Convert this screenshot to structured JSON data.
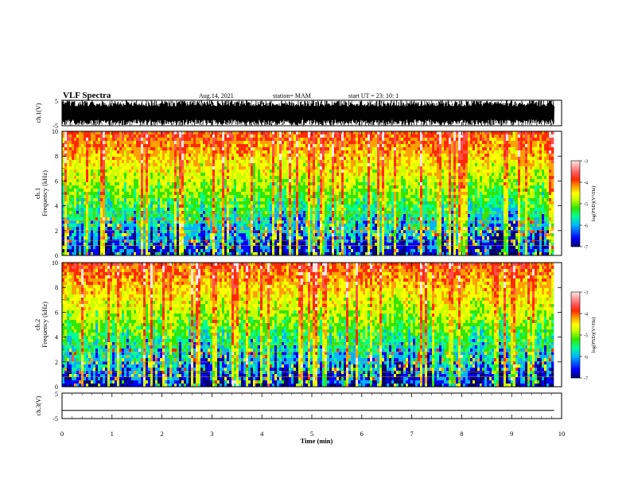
{
  "header": {
    "title": "VLF Spectra",
    "date": "Aug.14, 2021",
    "station": "station= MAM",
    "start_ut": "start  UT  =   23: 10: 1"
  },
  "colors": {
    "spectrum_palette": [
      "#00006e",
      "#0000ff",
      "#00b4ff",
      "#00ff96",
      "#32e600",
      "#c8ff00",
      "#ffff00",
      "#ffa000",
      "#ff2a00",
      "#ff5050",
      "#ffe6e6"
    ],
    "waveform": "#000000"
  },
  "chart_data": [
    {
      "type": "line",
      "name": "ch1-waveform",
      "ylabel": "ch.1(V)",
      "ylim": [
        -5,
        5
      ],
      "y_ticks": [
        "5",
        "-5"
      ],
      "xlim": [
        0,
        10
      ],
      "note": "dense oscillating voltage trace spanning the full range 0-9.85 min"
    },
    {
      "type": "heatmap",
      "name": "ch1-spectrogram",
      "ylabel": "ch.1\nFrequency (kHz)",
      "ylim": [
        0,
        10
      ],
      "y_ticks": [
        "0",
        "2",
        "4",
        "6",
        "8",
        "10"
      ],
      "xlim": [
        0,
        10
      ],
      "x_data_end": 9.85,
      "colorbar": {
        "label": "log(PSD)(V²/Hz)",
        "range": [
          -7,
          -3
        ],
        "ticks": [
          "-3",
          "-4",
          "-5",
          "-6",
          "-7"
        ]
      }
    },
    {
      "type": "heatmap",
      "name": "ch2-spectrogram",
      "ylabel": "ch.2\nFrequency (kHz)",
      "ylim": [
        0,
        10
      ],
      "y_ticks": [
        "0",
        "2",
        "4",
        "6",
        "8",
        "10"
      ],
      "xlim": [
        0,
        10
      ],
      "x_data_end": 9.85,
      "colorbar": {
        "label": "log(PSD)(V²/Hz)",
        "range": [
          -7,
          -3
        ],
        "ticks": [
          "-3",
          "-4",
          "-5",
          "-6",
          "-7"
        ]
      }
    },
    {
      "type": "line",
      "name": "ch3-waveform",
      "ylabel": "ch.3(V)",
      "ylim": [
        -5,
        5
      ],
      "y_ticks": [
        "5",
        "-5"
      ],
      "xlim": [
        0,
        10
      ],
      "x": [
        0,
        9.85
      ],
      "y": [
        -1.8,
        -1.8
      ]
    }
  ],
  "x_axis": {
    "label": "Time (min)",
    "ticks": [
      "0",
      "1",
      "2",
      "3",
      "4",
      "5",
      "6",
      "7",
      "8",
      "9",
      "10"
    ]
  }
}
